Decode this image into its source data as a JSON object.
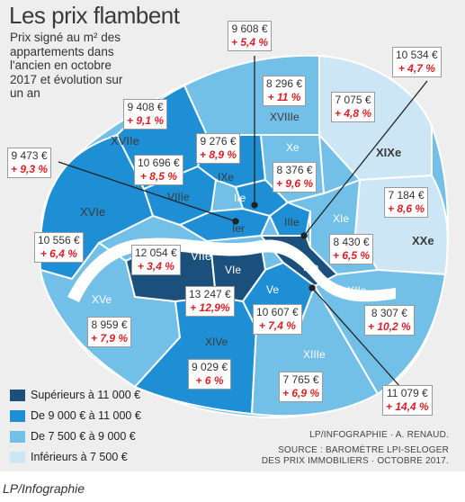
{
  "title": "Les prix flambent",
  "subtitle": "Prix signé au m² des appartements dans l'ancien en octobre 2017 et évolution sur un an",
  "legend": [
    {
      "label": "Supérieurs à 11 000 €",
      "color": "#1b4f7c"
    },
    {
      "label": "De 9 000 € à 11 000 €",
      "color": "#1e8fd4"
    },
    {
      "label": "De 7 500 € à 9 000 €",
      "color": "#72bfe8"
    },
    {
      "label": "Inférieurs à 7 500 €",
      "color": "#cde6f6"
    }
  ],
  "arrondissements": [
    {
      "id": "I",
      "label": "Ier",
      "price": "",
      "change": ""
    },
    {
      "id": "II",
      "label": "IIe",
      "price": "9 608 €",
      "change": "+ 5,4 %"
    },
    {
      "id": "III",
      "label": "IIIe",
      "price": "10 534 €",
      "change": "+ 4,7 %"
    },
    {
      "id": "IV",
      "label": "IVe",
      "price": "11 079 €",
      "change": "+ 14,4 %"
    },
    {
      "id": "V",
      "label": "Ve",
      "price": "10 607 €",
      "change": "+ 7,4 %"
    },
    {
      "id": "VI",
      "label": "VIe",
      "price": "13 247 €",
      "change": "+ 12,9%"
    },
    {
      "id": "VII",
      "label": "VIIe",
      "price": "12 054 €",
      "change": "+ 3,4 %"
    },
    {
      "id": "VIII",
      "label": "VIIIe",
      "price": "10 696 €",
      "change": "+ 8,5 %"
    },
    {
      "id": "IX",
      "label": "IXe",
      "price": "9 276 €",
      "change": "+ 8,9 %"
    },
    {
      "id": "X",
      "label": "Xe",
      "price": "8 376 €",
      "change": "+ 9,6 %"
    },
    {
      "id": "XI",
      "label": "XIe",
      "price": "8 430 €",
      "change": "+ 6,5 %"
    },
    {
      "id": "XII",
      "label": "XIIe",
      "price": "8 307 €",
      "change": "+ 10,2 %"
    },
    {
      "id": "XIII",
      "label": "XIIIe",
      "price": "7 765 €",
      "change": "+ 6,9 %"
    },
    {
      "id": "XIV",
      "label": "XIVe",
      "price": "9 029 €",
      "change": "+ 6 %"
    },
    {
      "id": "XV",
      "label": "XVe",
      "price": "8 959 €",
      "change": "+ 7,9 %"
    },
    {
      "id": "XVI",
      "label": "XVIe",
      "price": "10 556 €",
      "change": "+ 6,4 %"
    },
    {
      "id": "XVII",
      "label": "XVIIe",
      "price": "9 408 €",
      "change": "+ 9,1 %"
    },
    {
      "id": "XVIII",
      "label": "XVIIIe",
      "price": "8 296 €",
      "change": "+ 11 %"
    },
    {
      "id": "XIX",
      "label": "XIXe",
      "price": "7 075 €",
      "change": "+ 4,8 %"
    },
    {
      "id": "XX",
      "label": "XXe",
      "price": "7 184 €",
      "change": "+ 8,6 %"
    }
  ],
  "paris_average": {
    "price": "9 473 €",
    "change": "+ 9,3 %"
  },
  "credits": {
    "line1": "LP/INFOGRAPHIE · A. RENAUD.",
    "line2": "SOURCE : BAROMÈTRE LPI-SELOGER",
    "line3": "DES PRIX IMMOBILIERS · OCTOBRE 2017."
  },
  "footer": "LP/Infographie"
}
